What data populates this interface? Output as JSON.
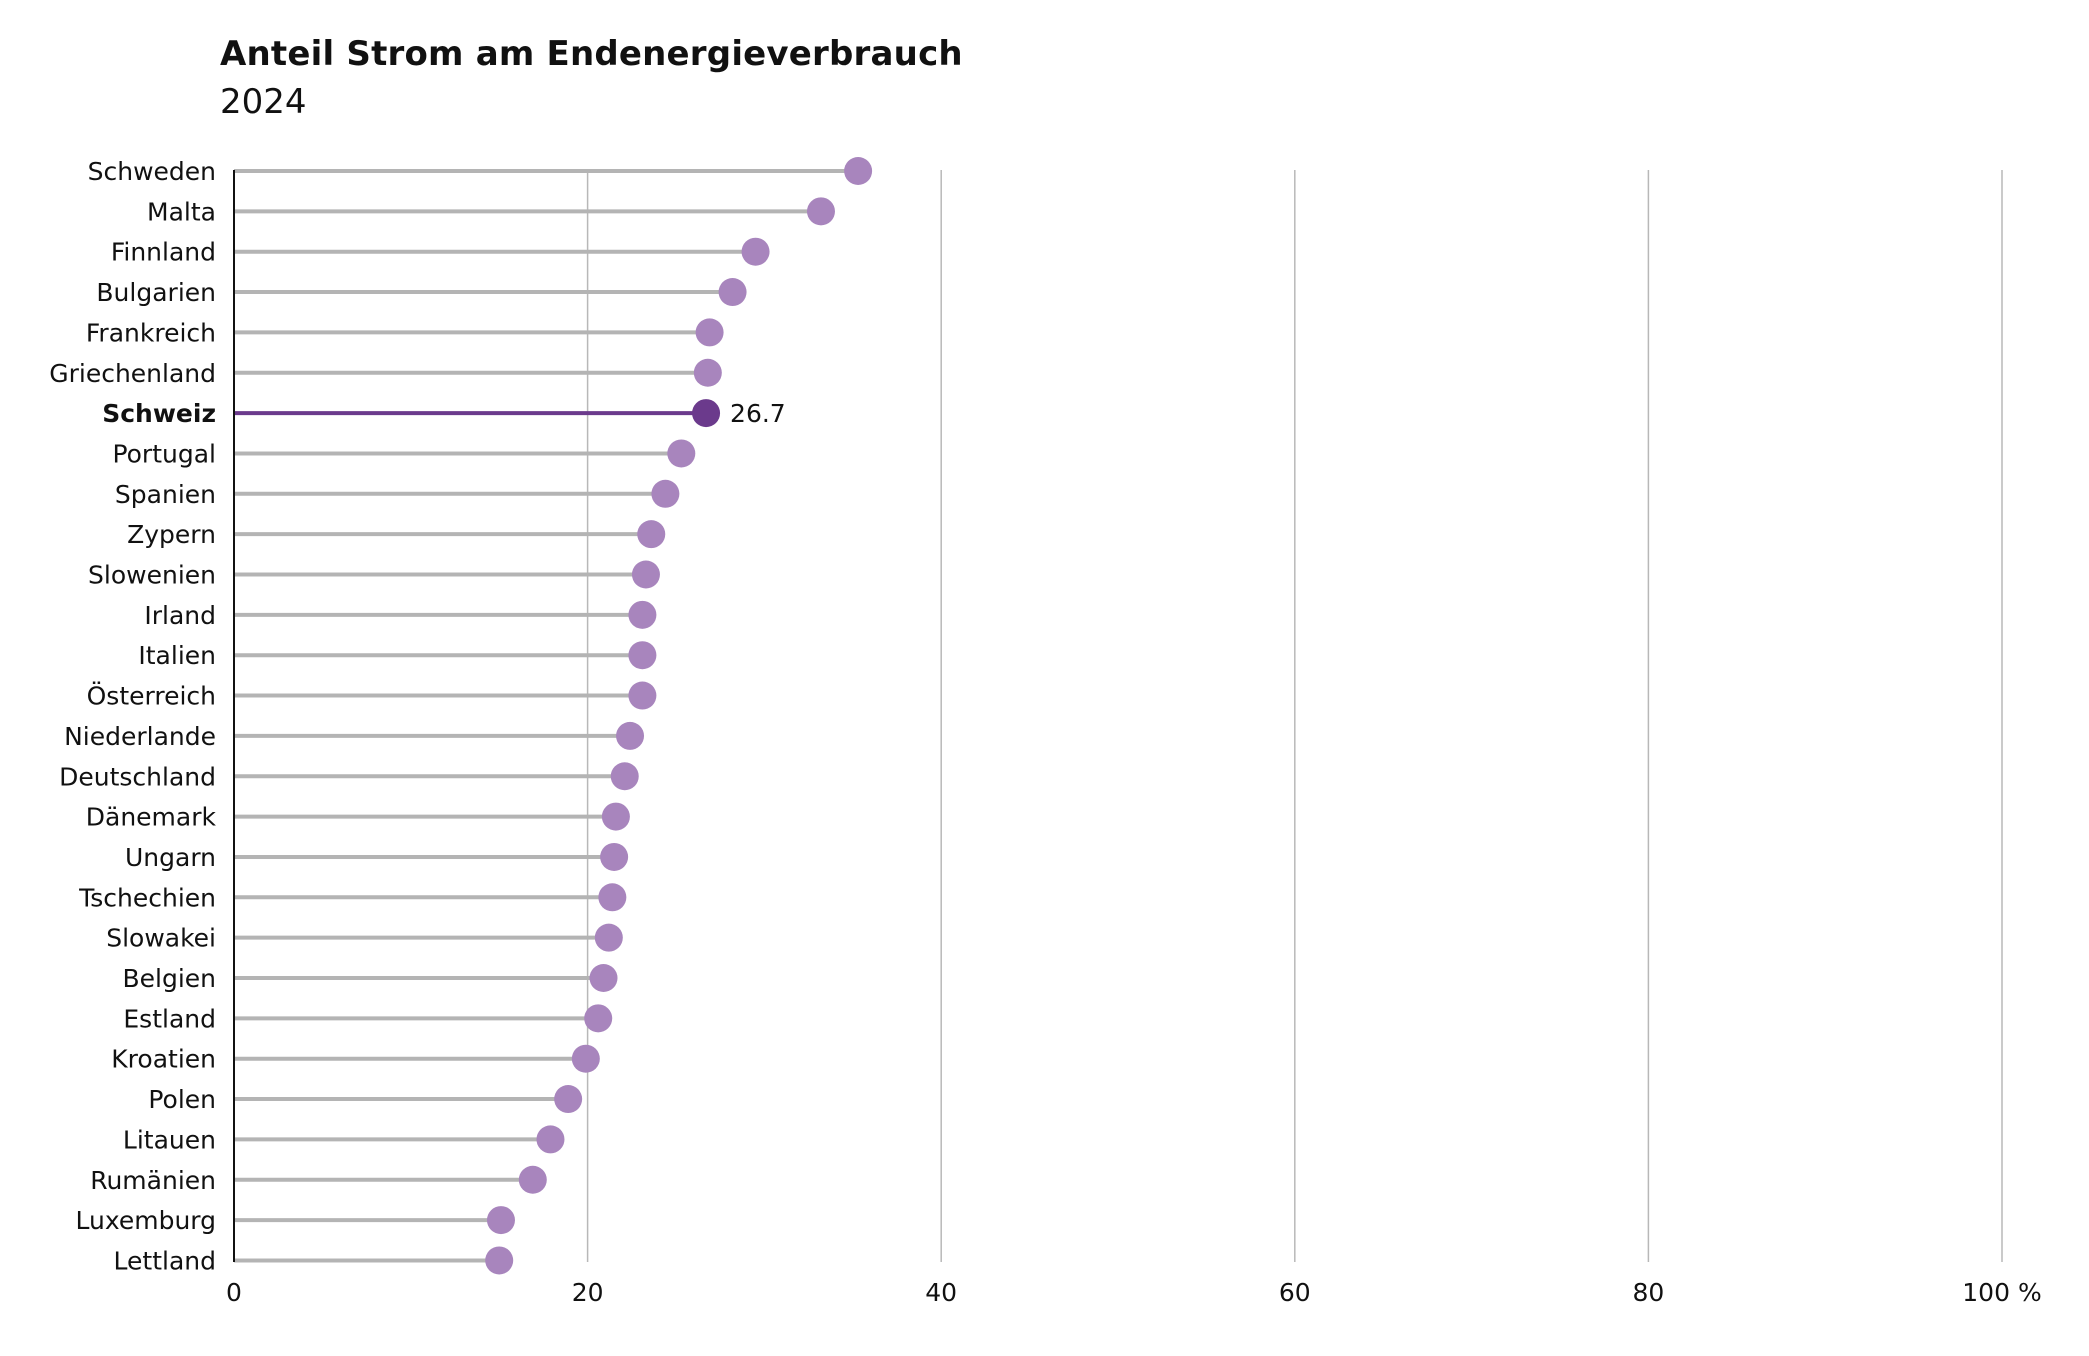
{
  "chart_data": {
    "type": "lollipop",
    "title": "Anteil Strom am Endenergieverbrauch",
    "subtitle": "2024",
    "xlim": [
      0,
      100
    ],
    "x_ticks": [
      "0",
      "20",
      "40",
      "60",
      "80",
      "100 %"
    ],
    "x_tick_values": [
      0,
      20,
      40,
      60,
      80,
      100
    ],
    "grid": "vertical",
    "highlight": "Schweiz",
    "highlight_label": "26.7",
    "colors": {
      "point": "#a885bd",
      "highlight": "#6b3a8c",
      "stem": "#b4b4b4",
      "grid": "#b8b8b8",
      "axis": "#111111"
    },
    "categories": [
      "Schweden",
      "Malta",
      "Finnland",
      "Bulgarien",
      "Frankreich",
      "Griechenland",
      "Schweiz",
      "Portugal",
      "Spanien",
      "Zypern",
      "Slowenien",
      "Irland",
      "Italien",
      "Österreich",
      "Niederlande",
      "Deutschland",
      "Dänemark",
      "Ungarn",
      "Tschechien",
      "Slowakei",
      "Belgien",
      "Estland",
      "Kroatien",
      "Polen",
      "Litauen",
      "Rumänien",
      "Luxemburg",
      "Lettland"
    ],
    "values": [
      35.3,
      33.2,
      29.5,
      28.2,
      26.9,
      26.8,
      26.7,
      25.3,
      24.4,
      23.6,
      23.3,
      23.1,
      23.1,
      23.1,
      22.4,
      22.1,
      21.6,
      21.5,
      21.4,
      21.2,
      20.9,
      20.6,
      19.9,
      18.9,
      17.9,
      16.9,
      15.1,
      15.0
    ]
  }
}
